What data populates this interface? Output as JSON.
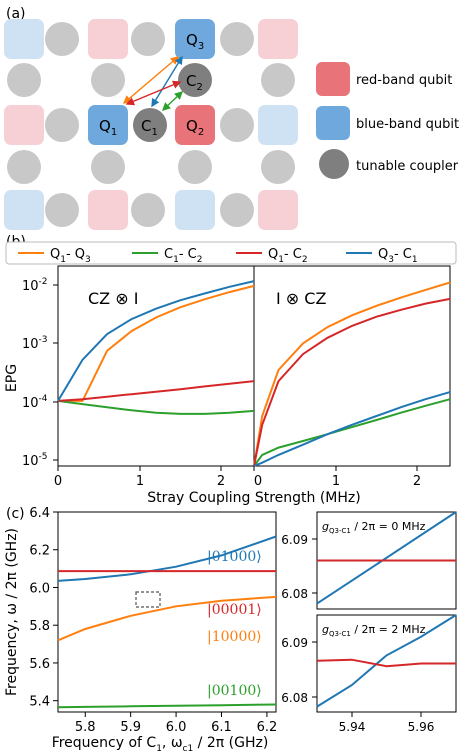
{
  "panel_a": {
    "label": "(a)",
    "qubits": {
      "q3": "Q",
      "q3_sub": "3",
      "c2": "C",
      "c2_sub": "2",
      "q1": "Q",
      "q1_sub": "1",
      "c1": "C",
      "c1_sub": "1",
      "q2": "Q",
      "q2_sub": "2"
    },
    "legend": {
      "red": "red-band qubit",
      "blue": "blue-band qubit",
      "coupler": "tunable coupler"
    },
    "colors": {
      "red_strong": "#e8747a",
      "red_light": "#f6d0d4",
      "blue_strong": "#6fa8dc",
      "blue_light": "#cfe2f3",
      "gray": "#c8c8c8",
      "gray_dark": "#7f7f7f"
    }
  },
  "panel_b": {
    "label": "(b)",
    "legend": [
      {
        "main": "Q",
        "sub1": "1",
        "mid": "- Q",
        "sub2": "3",
        "color": "#ff7f0e"
      },
      {
        "main": "C",
        "sub1": "1",
        "mid": "- C",
        "sub2": "2",
        "color": "#2ca02c"
      },
      {
        "main": "Q",
        "sub1": "1",
        "mid": "- C",
        "sub2": "2",
        "color": "#d62728"
      },
      {
        "main": "Q",
        "sub1": "3",
        "mid": "- C",
        "sub2": "1",
        "color": "#1f77b4"
      }
    ],
    "left_title": "CZ ⊗ I",
    "right_title": "I ⊗ CZ",
    "ylabel": "EPG",
    "xlabel": "Stray Coupling Strength (MHz)",
    "y_ticks": [
      {
        "base": "10",
        "exp": "-2"
      },
      {
        "base": "10",
        "exp": "-3"
      },
      {
        "base": "10",
        "exp": "-4"
      },
      {
        "base": "10",
        "exp": "-5"
      }
    ],
    "x_ticks_left": [
      "0",
      "1",
      "2"
    ],
    "x_ticks_right": [
      "0",
      "1",
      "2"
    ]
  },
  "panel_c": {
    "label": "(c)",
    "ylabel": "Frequency, ω / 2π (GHz)",
    "xlabel_main": "Frequency of C",
    "xlabel_sub": "1",
    "xlabel_rest": ", ω",
    "xlabel_sub2": "c1",
    "xlabel_end": " / 2π (GHz)",
    "y_ticks": [
      "6.4",
      "6.2",
      "6.0",
      "5.8",
      "5.6",
      "5.4"
    ],
    "x_ticks": [
      "5.8",
      "5.9",
      "6.0",
      "6.1",
      "6.2"
    ],
    "state_labels": {
      "s01000": "|01000⟩",
      "s00001": "|00001⟩",
      "s10000": "|10000⟩",
      "s00100": "|00100⟩"
    },
    "inset_top": {
      "g": "g",
      "sub": "Q3-C1",
      "rest": " / 2π = 0 MHz",
      "y_ticks": [
        "6.09",
        "6.08"
      ]
    },
    "inset_bottom": {
      "g": "g",
      "sub": "Q3-C1",
      "rest": " / 2π = 2 MHz",
      "y_ticks": [
        "6.09",
        "6.08"
      ],
      "x_ticks": [
        "5.94",
        "5.96"
      ]
    }
  },
  "chart_data": [
    {
      "type": "line",
      "title": "CZ ⊗ I",
      "xlabel": "Stray Coupling Strength (MHz)",
      "ylabel": "EPG",
      "y_scale": "log",
      "xlim": [
        0,
        2.4
      ],
      "ylim": [
        3e-06,
        0.03
      ],
      "x": [
        0,
        0.3,
        0.6,
        0.9,
        1.2,
        1.5,
        1.8,
        2.1,
        2.4
      ],
      "series": [
        {
          "name": "Q1- Q3",
          "color": "#ff7f0e",
          "values": [
            6e-05,
            6e-05,
            0.0006,
            0.0015,
            0.0028,
            0.0045,
            0.0065,
            0.009,
            0.012
          ]
        },
        {
          "name": "C1- C2",
          "color": "#2ca02c",
          "values": [
            6e-05,
            5.2e-05,
            4.5e-05,
            3.9e-05,
            3.5e-05,
            3.3e-05,
            3.3e-05,
            3.5e-05,
            3.8e-05
          ]
        },
        {
          "name": "Q1- C2",
          "color": "#d62728",
          "values": [
            6e-05,
            6.5e-05,
            7.3e-05,
            8.2e-05,
            9.2e-05,
            0.000103,
            0.000117,
            0.000132,
            0.00015
          ]
        },
        {
          "name": "Q3- C1",
          "color": "#1f77b4",
          "values": [
            6e-05,
            0.0004,
            0.0013,
            0.0026,
            0.0042,
            0.0062,
            0.0085,
            0.0115,
            0.015
          ]
        }
      ]
    },
    {
      "type": "line",
      "title": "I ⊗ CZ",
      "xlabel": "Stray Coupling Strength (MHz)",
      "ylabel": "EPG",
      "y_scale": "log",
      "xlim": [
        0,
        2.4
      ],
      "ylim": [
        3e-06,
        0.03
      ],
      "x": [
        0,
        0.1,
        0.3,
        0.6,
        0.9,
        1.2,
        1.5,
        1.8,
        2.1,
        2.4
      ],
      "series": [
        {
          "name": "Q1- Q3",
          "color": "#ff7f0e",
          "values": [
            3e-06,
            3e-05,
            0.00025,
            0.00085,
            0.0018,
            0.0031,
            0.0048,
            0.007,
            0.01,
            0.014
          ]
        },
        {
          "name": "C1- C2",
          "color": "#2ca02c",
          "values": [
            3e-06,
            5e-06,
            7e-06,
            9.5e-06,
            1.3e-05,
            1.8e-05,
            2.5e-05,
            3.5e-05,
            4.8e-05,
            6.5e-05
          ]
        },
        {
          "name": "Q1- C2",
          "color": "#d62728",
          "values": [
            3e-06,
            2e-05,
            0.00015,
            0.00052,
            0.0011,
            0.0019,
            0.0029,
            0.004,
            0.0053,
            0.0066
          ]
        },
        {
          "name": "Q3- C1",
          "color": "#1f77b4",
          "values": [
            3e-06,
            3.5e-06,
            5e-06,
            8e-06,
            1.3e-05,
            2e-05,
            3e-05,
            4.5e-05,
            6.5e-05,
            9e-05
          ]
        }
      ]
    },
    {
      "type": "line",
      "xlabel": "Frequency of C1, ωc1 / 2π (GHz)",
      "ylabel": "Frequency, ω / 2π (GHz)",
      "xlim": [
        5.74,
        6.22
      ],
      "ylim": [
        5.34,
        6.4
      ],
      "x": [
        5.74,
        5.8,
        5.9,
        6.0,
        6.1,
        6.22
      ],
      "series": [
        {
          "name": "|01000⟩",
          "color": "#1f77b4",
          "values": [
            6.035,
            6.045,
            6.07,
            6.11,
            6.17,
            6.27
          ]
        },
        {
          "name": "|00001⟩",
          "color": "#d62728",
          "values": [
            6.087,
            6.087,
            6.087,
            6.087,
            6.087,
            6.087
          ]
        },
        {
          "name": "|10000⟩",
          "color": "#ff7f0e",
          "values": [
            5.72,
            5.78,
            5.85,
            5.9,
            5.93,
            5.95
          ]
        },
        {
          "name": "|00100⟩",
          "color": "#2ca02c",
          "values": [
            5.365,
            5.367,
            5.37,
            5.373,
            5.376,
            5.38
          ]
        }
      ]
    },
    {
      "type": "line",
      "title": "gQ3-C1 / 2π = 0 MHz",
      "xlim": [
        5.93,
        5.97
      ],
      "ylim": [
        6.078,
        6.096
      ],
      "x": [
        5.93,
        5.97
      ],
      "series": [
        {
          "color": "#1f77b4",
          "values": [
            6.079,
            6.096
          ]
        },
        {
          "color": "#d62728",
          "values": [
            6.087,
            6.087
          ]
        }
      ]
    },
    {
      "type": "line",
      "title": "gQ3-C1 / 2π = 2 MHz",
      "xlim": [
        5.93,
        5.97
      ],
      "ylim": [
        6.078,
        6.096
      ],
      "x": [
        5.93,
        5.94,
        5.95,
        5.96,
        5.97
      ],
      "series": [
        {
          "color": "#1f77b4",
          "values": [
            6.079,
            6.083,
            6.0885,
            6.092,
            6.096
          ]
        },
        {
          "color": "#d62728",
          "values": [
            6.0875,
            6.0877,
            6.0865,
            6.087,
            6.087
          ]
        }
      ]
    }
  ]
}
